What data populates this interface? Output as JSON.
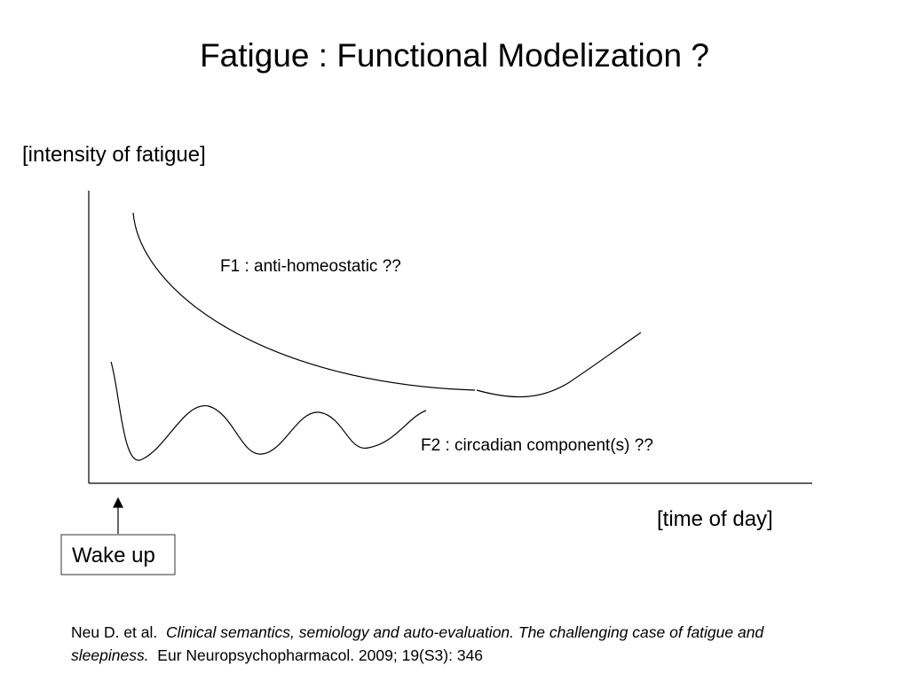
{
  "header": {
    "title": "Fatigue : Functional Modelization ?"
  },
  "axes": {
    "y_label": "[intensity of fatigue]",
    "x_label": "[time of day]"
  },
  "curves": [
    {
      "label": "F1 : anti-homeostatic ??"
    },
    {
      "label": "F2 : circadian component(s) ??"
    }
  ],
  "marker": {
    "label": "Wake up"
  },
  "reference": {
    "authors": "Neu D. et al.",
    "title": "Clinical semantics, semiology and auto-evaluation. The challenging case of fatigue and sleepiness.",
    "source": "Eur Neuropsychopharmacol. 2009; 19(S3): 346"
  }
}
